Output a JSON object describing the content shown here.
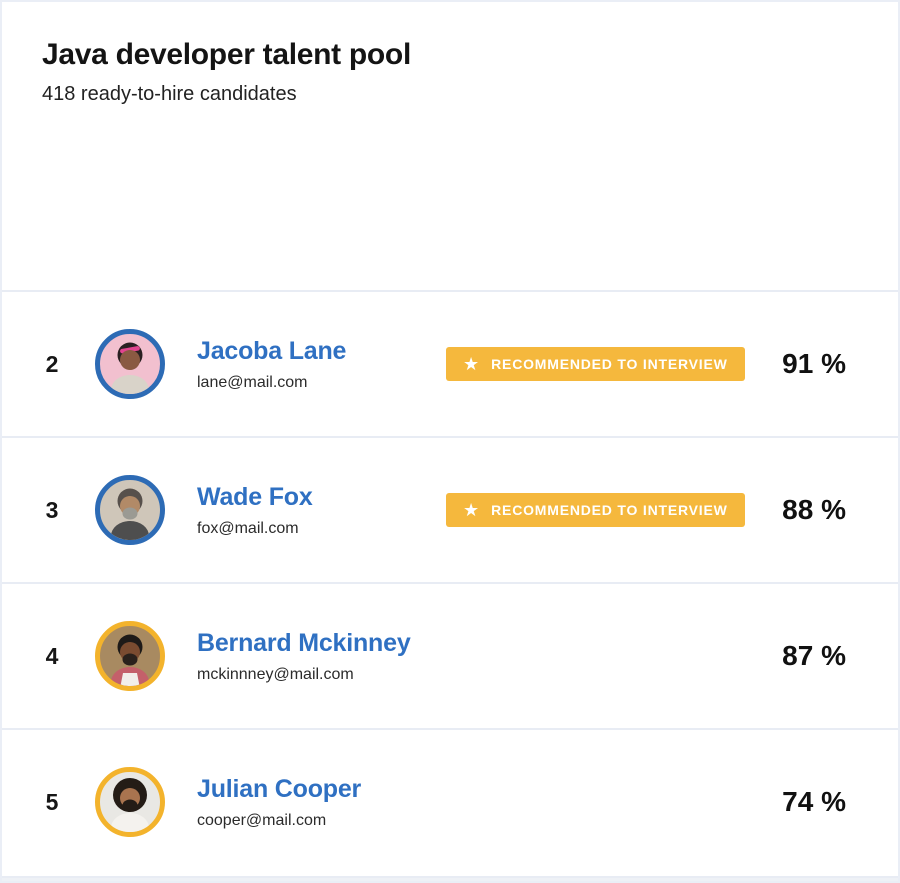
{
  "page": {
    "title": "Java developer talent pool",
    "subtitle": "418 ready-to-hire candidates"
  },
  "badge": {
    "label": "RECOMMENDED TO INTERVIEW",
    "star_icon": "★",
    "bg_color": "#F5B83D",
    "text_color": "#FFFFFF"
  },
  "colors": {
    "name_link_blue": "#2F70C2",
    "ring_blue": "#2D6BB5",
    "ring_yellow": "#F3B32C",
    "row_divider": "#E8ECF4",
    "page_border": "#EAEEF6",
    "percent_text": "#111111"
  },
  "candidates": [
    {
      "rank": "2",
      "name": "Jacoba Lane",
      "email": "lane@mail.com",
      "match_percent": "91 %",
      "recommended": true,
      "avatar": {
        "ring": "#2D6BB5",
        "bg": "#F2C0CF",
        "skin": "#8A5A42",
        "hair": "#2A2022",
        "shirt": "#D9D3C9",
        "hair_type": "short",
        "accessory": "#E2448F"
      }
    },
    {
      "rank": "3",
      "name": "Wade Fox",
      "email": "fox@mail.com",
      "match_percent": "88 %",
      "recommended": true,
      "avatar": {
        "ring": "#2D6BB5",
        "bg": "#CFC6B9",
        "skin": "#B28A67",
        "hair": "#57504B",
        "shirt": "#4E4E4E",
        "hair_type": "short",
        "beard": "#9B9A93"
      }
    },
    {
      "rank": "4",
      "name": "Bernard Mckinney",
      "email": "mckinnney@mail.com",
      "match_percent": "87 %",
      "recommended": false,
      "avatar": {
        "ring": "#F3B32C",
        "bg": "#A5steal",
        "hair_type": "short"
      }
    },
    {
      "rank": "5",
      "name": "Julian Cooper",
      "email": "cooper@mail.com",
      "match_percent": "74 %",
      "recommended": false,
      "avatar": {
        "ring": "#F3B32C",
        "bg": "#E9E8E4",
        "skin": "#A9744F",
        "hair": "#241C16",
        "shirt": "#F4F2EE",
        "hair_type": "afro",
        "beard": "#241C16"
      }
    }
  ]
}
